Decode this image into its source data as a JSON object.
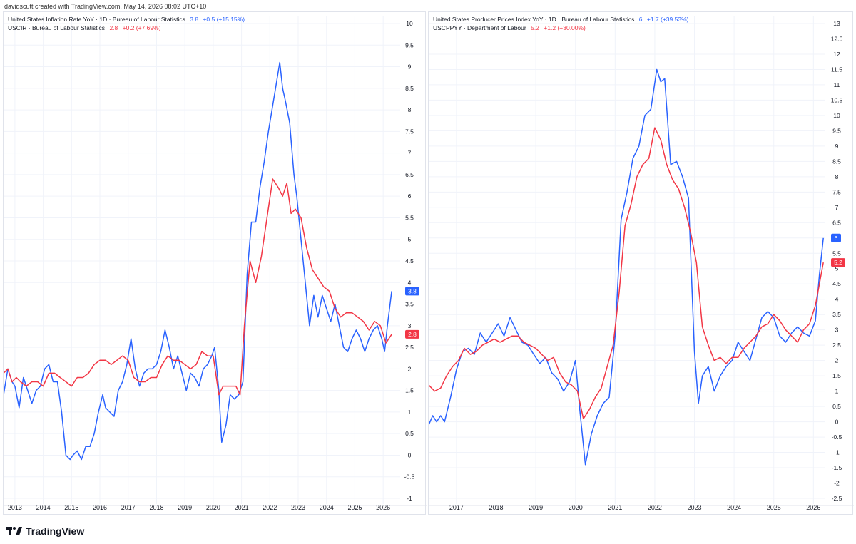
{
  "header": {
    "text": "davidscutt created with TradingView.com, May 14, 2026 08:02 UTC+10"
  },
  "footer": {
    "brand": "TradingView"
  },
  "colors": {
    "blue": "#2962ff",
    "red": "#f23645",
    "grid": "#f0f3fa",
    "axis_text": "#131722"
  },
  "chart_data": [
    {
      "type": "line",
      "legend": [
        {
          "name": "United States Inflation Rate YoY · 1D · Bureau of Labour Statistics",
          "value": "3.8",
          "change": "+0.5 (+15.15%)",
          "color": "#2962ff"
        },
        {
          "name": "USCIR · Bureau of Labour Statistics",
          "value": "2.8",
          "change": "+0.2 (+7.69%)",
          "color": "#f23645"
        }
      ],
      "ylim": [
        -1,
        10
      ],
      "y_ticks": [
        "-1",
        "-0.5",
        "0",
        "0.5",
        "1",
        "1.5",
        "2",
        "2.5",
        "3",
        "3.5",
        "4",
        "4.5",
        "5",
        "5.5",
        "6",
        "6.5",
        "7",
        "7.5",
        "8",
        "8.5",
        "9",
        "9.5",
        "10"
      ],
      "xlim": [
        2012.6,
        2026.6
      ],
      "x_ticks": [
        "2013",
        "2014",
        "2015",
        "2016",
        "2017",
        "2018",
        "2019",
        "2020",
        "2021",
        "2022",
        "2023",
        "2024",
        "2025",
        "2026"
      ],
      "last_labels": [
        {
          "value": "3.8",
          "color": "#2962ff"
        },
        {
          "value": "2.8",
          "color": "#f23645"
        }
      ],
      "series": [
        {
          "color": "#2962ff",
          "x": [
            2012.6,
            2012.75,
            2012.9,
            2013.0,
            2013.15,
            2013.3,
            2013.45,
            2013.6,
            2013.75,
            2013.9,
            2014.05,
            2014.2,
            2014.35,
            2014.5,
            2014.65,
            2014.8,
            2014.95,
            2015.05,
            2015.2,
            2015.35,
            2015.5,
            2015.65,
            2015.8,
            2015.95,
            2016.1,
            2016.2,
            2016.35,
            2016.5,
            2016.65,
            2016.8,
            2016.95,
            2017.1,
            2017.25,
            2017.4,
            2017.55,
            2017.7,
            2017.85,
            2018.0,
            2018.15,
            2018.3,
            2018.45,
            2018.6,
            2018.75,
            2018.9,
            2019.05,
            2019.2,
            2019.35,
            2019.5,
            2019.65,
            2019.8,
            2019.95,
            2020.05,
            2020.2,
            2020.3,
            2020.45,
            2020.6,
            2020.75,
            2020.9,
            2021.05,
            2021.2,
            2021.35,
            2021.5,
            2021.65,
            2021.8,
            2021.95,
            2022.05,
            2022.2,
            2022.35,
            2022.45,
            2022.55,
            2022.7,
            2022.85,
            2022.95,
            2023.1,
            2023.25,
            2023.4,
            2023.55,
            2023.7,
            2023.85,
            2024.0,
            2024.15,
            2024.3,
            2024.45,
            2024.6,
            2024.75,
            2024.9,
            2025.05,
            2025.2,
            2025.35,
            2025.5,
            2025.65,
            2025.8,
            2025.95,
            2026.05,
            2026.15,
            2026.3
          ],
          "y": [
            1.4,
            2.0,
            1.7,
            1.6,
            1.1,
            1.8,
            1.5,
            1.2,
            1.5,
            1.6,
            2.0,
            2.1,
            1.7,
            1.7,
            1.0,
            0.0,
            -0.1,
            0.0,
            0.1,
            -0.1,
            0.2,
            0.2,
            0.5,
            1.0,
            1.4,
            1.1,
            1.0,
            0.9,
            1.5,
            1.7,
            2.1,
            2.7,
            2.0,
            1.6,
            1.9,
            2.0,
            2.0,
            2.1,
            2.4,
            2.9,
            2.5,
            2.0,
            2.3,
            1.9,
            1.5,
            1.9,
            1.8,
            1.6,
            2.0,
            2.1,
            2.3,
            2.5,
            1.5,
            0.3,
            0.7,
            1.4,
            1.3,
            1.4,
            1.7,
            4.2,
            5.4,
            5.4,
            6.2,
            6.8,
            7.5,
            7.9,
            8.5,
            9.1,
            8.5,
            8.2,
            7.7,
            6.5,
            6.0,
            5.0,
            4.0,
            3.0,
            3.7,
            3.2,
            3.7,
            3.4,
            3.1,
            3.5,
            3.0,
            2.5,
            2.4,
            2.7,
            2.9,
            2.7,
            2.4,
            2.7,
            2.9,
            3.0,
            2.7,
            2.4,
            3.0,
            3.8
          ]
        },
        {
          "color": "#f23645",
          "x": [
            2012.6,
            2012.75,
            2012.9,
            2013.05,
            2013.2,
            2013.4,
            2013.6,
            2013.8,
            2014.0,
            2014.2,
            2014.4,
            2014.6,
            2014.8,
            2015.0,
            2015.2,
            2015.4,
            2015.6,
            2015.8,
            2016.0,
            2016.2,
            2016.4,
            2016.6,
            2016.8,
            2017.0,
            2017.2,
            2017.4,
            2017.6,
            2017.8,
            2018.0,
            2018.2,
            2018.4,
            2018.6,
            2018.8,
            2019.0,
            2019.2,
            2019.4,
            2019.6,
            2019.8,
            2020.0,
            2020.2,
            2020.35,
            2020.5,
            2020.65,
            2020.8,
            2020.95,
            2021.1,
            2021.3,
            2021.5,
            2021.7,
            2021.9,
            2022.1,
            2022.3,
            2022.45,
            2022.6,
            2022.75,
            2022.9,
            2023.1,
            2023.3,
            2023.5,
            2023.7,
            2023.9,
            2024.1,
            2024.3,
            2024.5,
            2024.7,
            2024.9,
            2025.1,
            2025.3,
            2025.5,
            2025.7,
            2025.9,
            2026.1,
            2026.3
          ],
          "y": [
            1.9,
            2.0,
            1.7,
            1.8,
            1.7,
            1.6,
            1.7,
            1.7,
            1.6,
            1.9,
            1.9,
            1.8,
            1.7,
            1.6,
            1.8,
            1.8,
            1.9,
            2.1,
            2.2,
            2.2,
            2.1,
            2.2,
            2.3,
            2.2,
            1.8,
            1.7,
            1.7,
            1.8,
            1.8,
            2.1,
            2.3,
            2.2,
            2.2,
            2.1,
            2.0,
            2.1,
            2.4,
            2.3,
            2.3,
            1.4,
            1.6,
            1.6,
            1.6,
            1.6,
            1.4,
            3.0,
            4.5,
            4.0,
            4.6,
            5.5,
            6.4,
            6.2,
            6.0,
            6.3,
            5.6,
            5.7,
            5.5,
            4.8,
            4.3,
            4.1,
            3.9,
            3.8,
            3.4,
            3.2,
            3.3,
            3.3,
            3.2,
            3.1,
            2.9,
            3.1,
            3.0,
            2.6,
            2.8
          ]
        }
      ]
    },
    {
      "type": "line",
      "legend": [
        {
          "name": "United States Producer Prices Index YoY · 1D · Bureau of Labour Statistics",
          "value": "6",
          "change": "+1.7 (+39.53%)",
          "color": "#2962ff"
        },
        {
          "name": "USCPPYY · Department of Labour",
          "value": "5.2",
          "change": "+1.2 (+30.00%)",
          "color": "#f23645"
        }
      ],
      "ylim": [
        -2.5,
        13
      ],
      "y_ticks": [
        "-2.5",
        "-2",
        "-1.5",
        "-1",
        "-0.5",
        "0",
        "0.5",
        "1",
        "1.5",
        "2",
        "2.5",
        "3",
        "3.5",
        "4",
        "4.5",
        "5",
        "5.5",
        "6",
        "6.5",
        "7",
        "7.5",
        "8",
        "8.5",
        "9",
        "9.5",
        "10",
        "10.5",
        "11",
        "11.5",
        "12",
        "12.5",
        "13"
      ],
      "xlim": [
        2016.3,
        2026.3
      ],
      "x_ticks": [
        "2017",
        "2018",
        "2019",
        "2020",
        "2021",
        "2022",
        "2023",
        "2024",
        "2025",
        "2026"
      ],
      "last_labels": [
        {
          "value": "6",
          "color": "#2962ff"
        },
        {
          "value": "5.2",
          "color": "#f23645"
        }
      ],
      "series": [
        {
          "color": "#2962ff",
          "x": [
            2016.3,
            2016.4,
            2016.5,
            2016.6,
            2016.7,
            2016.85,
            2017.0,
            2017.15,
            2017.3,
            2017.45,
            2017.6,
            2017.75,
            2017.9,
            2018.05,
            2018.2,
            2018.35,
            2018.5,
            2018.65,
            2018.8,
            2018.95,
            2019.1,
            2019.25,
            2019.4,
            2019.55,
            2019.7,
            2019.85,
            2020.0,
            2020.1,
            2020.25,
            2020.4,
            2020.55,
            2020.7,
            2020.85,
            2021.0,
            2021.15,
            2021.3,
            2021.45,
            2021.6,
            2021.75,
            2021.9,
            2022.05,
            2022.15,
            2022.25,
            2022.4,
            2022.55,
            2022.7,
            2022.85,
            2023.0,
            2023.1,
            2023.2,
            2023.35,
            2023.5,
            2023.65,
            2023.8,
            2023.95,
            2024.1,
            2024.25,
            2024.4,
            2024.55,
            2024.7,
            2024.85,
            2025.0,
            2025.15,
            2025.3,
            2025.45,
            2025.6,
            2025.75,
            2025.9,
            2026.05,
            2026.15,
            2026.25
          ],
          "y": [
            -0.1,
            0.2,
            0.0,
            0.2,
            0.0,
            0.8,
            1.7,
            2.3,
            2.4,
            2.2,
            2.9,
            2.6,
            2.9,
            3.2,
            2.8,
            3.4,
            3.0,
            2.6,
            2.5,
            2.2,
            1.9,
            2.1,
            1.6,
            1.4,
            1.0,
            1.3,
            2.0,
            0.5,
            -1.4,
            -0.4,
            0.2,
            0.6,
            0.8,
            2.8,
            6.6,
            7.5,
            8.6,
            9.0,
            10.0,
            10.2,
            11.5,
            11.1,
            11.2,
            8.4,
            8.5,
            8.0,
            7.3,
            2.3,
            0.6,
            1.5,
            1.8,
            1.0,
            1.5,
            1.8,
            2.0,
            2.6,
            2.3,
            2.0,
            2.7,
            3.4,
            3.6,
            3.4,
            2.8,
            2.6,
            2.9,
            3.1,
            2.9,
            2.8,
            3.3,
            4.8,
            6.0
          ]
        },
        {
          "color": "#f23645",
          "x": [
            2016.3,
            2016.45,
            2016.6,
            2016.75,
            2016.9,
            2017.05,
            2017.2,
            2017.35,
            2017.5,
            2017.65,
            2017.8,
            2017.95,
            2018.1,
            2018.25,
            2018.4,
            2018.55,
            2018.7,
            2018.85,
            2019.0,
            2019.15,
            2019.3,
            2019.45,
            2019.6,
            2019.75,
            2019.9,
            2020.05,
            2020.2,
            2020.35,
            2020.5,
            2020.65,
            2020.8,
            2020.95,
            2021.1,
            2021.25,
            2021.4,
            2021.55,
            2021.7,
            2021.85,
            2022.0,
            2022.15,
            2022.3,
            2022.45,
            2022.6,
            2022.75,
            2022.9,
            2023.05,
            2023.2,
            2023.35,
            2023.5,
            2023.65,
            2023.8,
            2023.95,
            2024.1,
            2024.25,
            2024.4,
            2024.55,
            2024.7,
            2024.85,
            2025.0,
            2025.15,
            2025.3,
            2025.45,
            2025.6,
            2025.75,
            2025.9,
            2026.05,
            2026.15,
            2026.25
          ],
          "y": [
            1.2,
            1.0,
            1.1,
            1.5,
            1.8,
            2.0,
            2.4,
            2.2,
            2.3,
            2.5,
            2.6,
            2.7,
            2.6,
            2.7,
            2.8,
            2.8,
            2.6,
            2.5,
            2.4,
            2.2,
            2.0,
            2.1,
            1.6,
            1.3,
            1.2,
            1.0,
            0.1,
            0.4,
            0.8,
            1.1,
            1.8,
            2.5,
            4.2,
            6.4,
            7.1,
            8.0,
            8.4,
            8.6,
            9.6,
            9.2,
            8.4,
            7.9,
            7.6,
            7.0,
            6.2,
            5.2,
            3.1,
            2.5,
            2.0,
            2.1,
            1.9,
            2.1,
            2.1,
            2.4,
            2.6,
            2.8,
            3.1,
            3.2,
            3.5,
            3.3,
            3.0,
            2.8,
            2.6,
            3.0,
            3.2,
            3.8,
            4.5,
            5.2
          ]
        }
      ]
    }
  ]
}
